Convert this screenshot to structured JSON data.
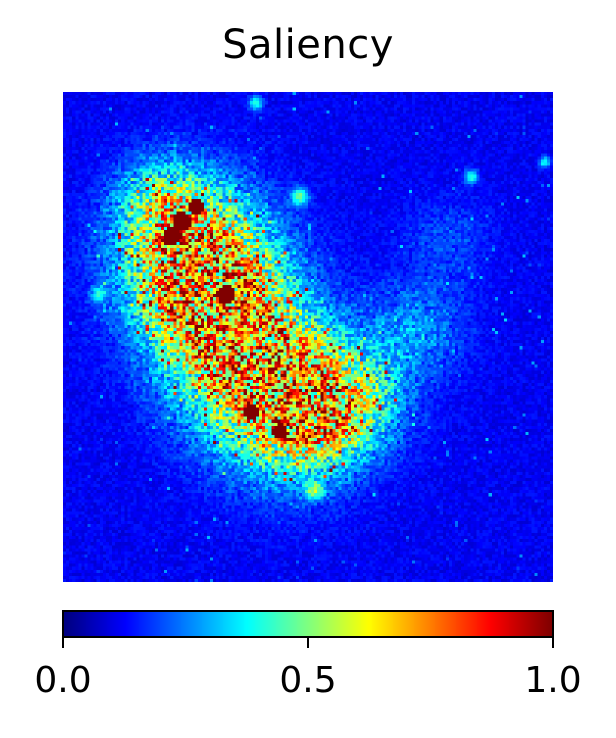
{
  "chart_data": {
    "type": "heatmap",
    "title": "Saliency",
    "colormap": "jet",
    "value_range": [
      0.0,
      1.0
    ],
    "colorbar": {
      "orientation": "horizontal",
      "ticks": [
        0.0,
        0.5,
        1.0
      ],
      "tick_labels": [
        "0.0",
        "0.5",
        "1.0"
      ]
    },
    "grid": false,
    "axes_visible": false,
    "background_level": 0.1,
    "noise_level": 0.07,
    "salient_region": {
      "shape": "diagonal band from upper-left to lower-center",
      "peak_value": 1.0,
      "typical_value": 0.45
    }
  }
}
